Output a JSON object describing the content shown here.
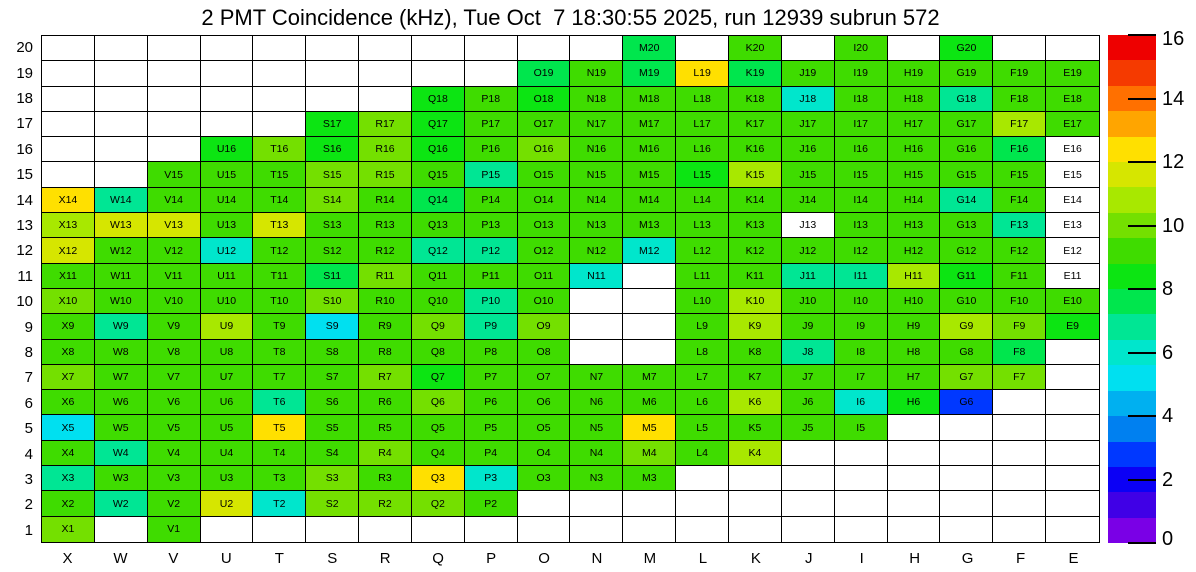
{
  "chart_data": {
    "type": "heatmap",
    "title": "2 PMT Coincidence (kHz), Tue Oct  7 18:30:55 2025, run 12939 subrun 572",
    "columns": [
      "X",
      "W",
      "V",
      "U",
      "T",
      "S",
      "R",
      "Q",
      "P",
      "O",
      "N",
      "M",
      "L",
      "K",
      "J",
      "I",
      "H",
      "G",
      "F",
      "E"
    ],
    "rows": [
      20,
      19,
      18,
      17,
      16,
      15,
      14,
      13,
      12,
      11,
      10,
      9,
      8,
      7,
      6,
      5,
      4,
      3,
      2,
      1
    ],
    "zmin": 0,
    "zmax": 16,
    "band_size": 0.8,
    "grid": "on",
    "legend_position": "right-colorbar",
    "colorbar_ticks": [
      0,
      2,
      4,
      6,
      8,
      10,
      12,
      14,
      16
    ],
    "palette": [
      "#7a00e6",
      "#4000e6",
      "#0b00f5",
      "#0038ff",
      "#0080f0",
      "#00b0f0",
      "#00e0f0",
      "#00e6cc",
      "#00e694",
      "#00e64d",
      "#0ce512",
      "#3fdc00",
      "#74e000",
      "#a8e800",
      "#d6e600",
      "#ffe000",
      "#ffa500",
      "#ff7000",
      "#f53a00",
      "#ee0000"
    ],
    "empty_cell": null,
    "labeled_blank_marker": "w",
    "values": [
      [
        null,
        null,
        null,
        null,
        null,
        null,
        null,
        null,
        null,
        null,
        null,
        7.6,
        null,
        9.2,
        null,
        9.2,
        null,
        8.4,
        null,
        null
      ],
      [
        null,
        null,
        null,
        null,
        null,
        null,
        null,
        null,
        null,
        7.6,
        9.2,
        7.6,
        12.4,
        7.6,
        9.2,
        9.2,
        9.2,
        9.2,
        9.2,
        9.2
      ],
      [
        null,
        null,
        null,
        null,
        null,
        null,
        null,
        8.4,
        9.2,
        8.4,
        9.2,
        9.2,
        9.2,
        9.2,
        6.0,
        9.2,
        9.2,
        6.8,
        9.2,
        9.2
      ],
      [
        null,
        null,
        null,
        null,
        null,
        8.4,
        10.0,
        8.4,
        9.2,
        9.2,
        9.2,
        9.2,
        9.2,
        9.2,
        9.2,
        9.2,
        9.2,
        9.2,
        10.8,
        9.2
      ],
      [
        null,
        null,
        null,
        8.4,
        10.0,
        8.4,
        10.0,
        8.4,
        9.2,
        10.0,
        9.2,
        9.2,
        9.2,
        9.2,
        9.2,
        9.2,
        9.2,
        9.2,
        7.6,
        "w"
      ],
      [
        null,
        null,
        9.2,
        9.2,
        9.2,
        10.0,
        10.0,
        9.2,
        6.8,
        9.2,
        9.2,
        9.2,
        8.4,
        10.8,
        9.2,
        9.2,
        9.2,
        9.2,
        9.2,
        "w"
      ],
      [
        12.4,
        6.8,
        9.2,
        9.2,
        9.2,
        10.0,
        9.2,
        7.6,
        9.2,
        9.2,
        9.2,
        9.2,
        9.2,
        9.2,
        9.2,
        9.2,
        9.2,
        6.8,
        9.2,
        "w"
      ],
      [
        10.8,
        11.6,
        11.6,
        9.2,
        11.6,
        9.2,
        9.2,
        9.2,
        9.2,
        9.2,
        9.2,
        9.2,
        9.2,
        9.2,
        "w",
        9.2,
        9.2,
        9.2,
        6.8,
        "w"
      ],
      [
        11.6,
        9.2,
        9.2,
        6.0,
        9.2,
        9.2,
        9.2,
        6.8,
        6.8,
        9.2,
        9.2,
        6.0,
        9.2,
        9.2,
        9.2,
        9.2,
        9.2,
        9.2,
        9.2,
        "w"
      ],
      [
        9.2,
        9.2,
        9.2,
        9.2,
        9.2,
        7.6,
        10.0,
        9.2,
        9.2,
        9.2,
        6.0,
        null,
        9.2,
        9.2,
        6.8,
        6.8,
        10.8,
        8.4,
        9.2,
        "w"
      ],
      [
        10.0,
        9.2,
        9.2,
        9.2,
        9.2,
        10.0,
        9.2,
        9.2,
        6.8,
        9.2,
        null,
        null,
        9.2,
        10.8,
        9.2,
        9.2,
        9.2,
        9.2,
        9.2,
        9.2
      ],
      [
        9.2,
        6.8,
        9.2,
        10.8,
        9.2,
        5.2,
        9.2,
        10.0,
        6.8,
        10.0,
        null,
        null,
        9.2,
        10.8,
        9.2,
        9.2,
        9.2,
        10.8,
        10.0,
        8.4
      ],
      [
        9.2,
        9.2,
        9.2,
        9.2,
        9.2,
        9.2,
        9.2,
        9.2,
        9.2,
        9.2,
        null,
        null,
        9.2,
        9.2,
        6.8,
        9.2,
        9.2,
        9.2,
        7.6,
        null
      ],
      [
        10.0,
        9.2,
        9.2,
        9.2,
        9.2,
        9.2,
        10.0,
        8.4,
        9.2,
        9.2,
        9.2,
        9.2,
        9.2,
        9.2,
        9.2,
        9.2,
        9.2,
        10.0,
        10.0,
        null
      ],
      [
        9.2,
        9.2,
        9.2,
        9.2,
        6.8,
        9.2,
        9.2,
        10.0,
        9.2,
        9.2,
        9.2,
        9.2,
        9.2,
        10.8,
        9.2,
        6.0,
        8.4,
        2.8,
        null,
        null
      ],
      [
        5.2,
        9.2,
        9.2,
        9.2,
        12.4,
        9.2,
        9.2,
        9.2,
        9.2,
        9.2,
        9.2,
        12.4,
        9.2,
        9.2,
        9.2,
        9.2,
        null,
        null,
        null,
        null
      ],
      [
        9.2,
        6.8,
        9.2,
        9.2,
        9.2,
        9.2,
        10.0,
        9.2,
        9.2,
        9.2,
        9.2,
        10.0,
        9.2,
        10.8,
        null,
        null,
        null,
        null,
        null,
        null
      ],
      [
        6.8,
        9.2,
        9.2,
        9.2,
        9.2,
        10.0,
        9.2,
        12.4,
        6.0,
        9.2,
        9.2,
        9.2,
        null,
        null,
        null,
        null,
        null,
        null,
        null,
        null
      ],
      [
        9.2,
        6.8,
        9.2,
        11.6,
        6.0,
        10.0,
        10.0,
        10.0,
        9.2,
        null,
        null,
        null,
        null,
        null,
        null,
        null,
        null,
        null,
        null,
        null
      ],
      [
        10.0,
        null,
        9.2,
        null,
        null,
        null,
        null,
        null,
        null,
        null,
        null,
        null,
        null,
        null,
        null,
        null,
        null,
        null,
        null,
        null
      ]
    ]
  }
}
